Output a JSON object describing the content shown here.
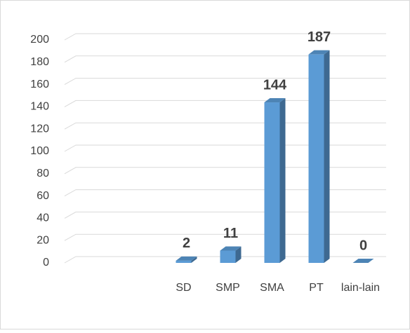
{
  "chart_data": {
    "type": "bar",
    "categories": [
      null,
      null,
      "SD",
      "SMP",
      "SMA",
      "PT",
      "lain-lain"
    ],
    "values": [
      null,
      null,
      2,
      11,
      144,
      187,
      0
    ],
    "color": "#5b9bd5",
    "ylim": [
      0,
      200
    ],
    "yticks": [
      0,
      20,
      40,
      60,
      80,
      100,
      120,
      140,
      160,
      180,
      200
    ],
    "grid": true
  }
}
